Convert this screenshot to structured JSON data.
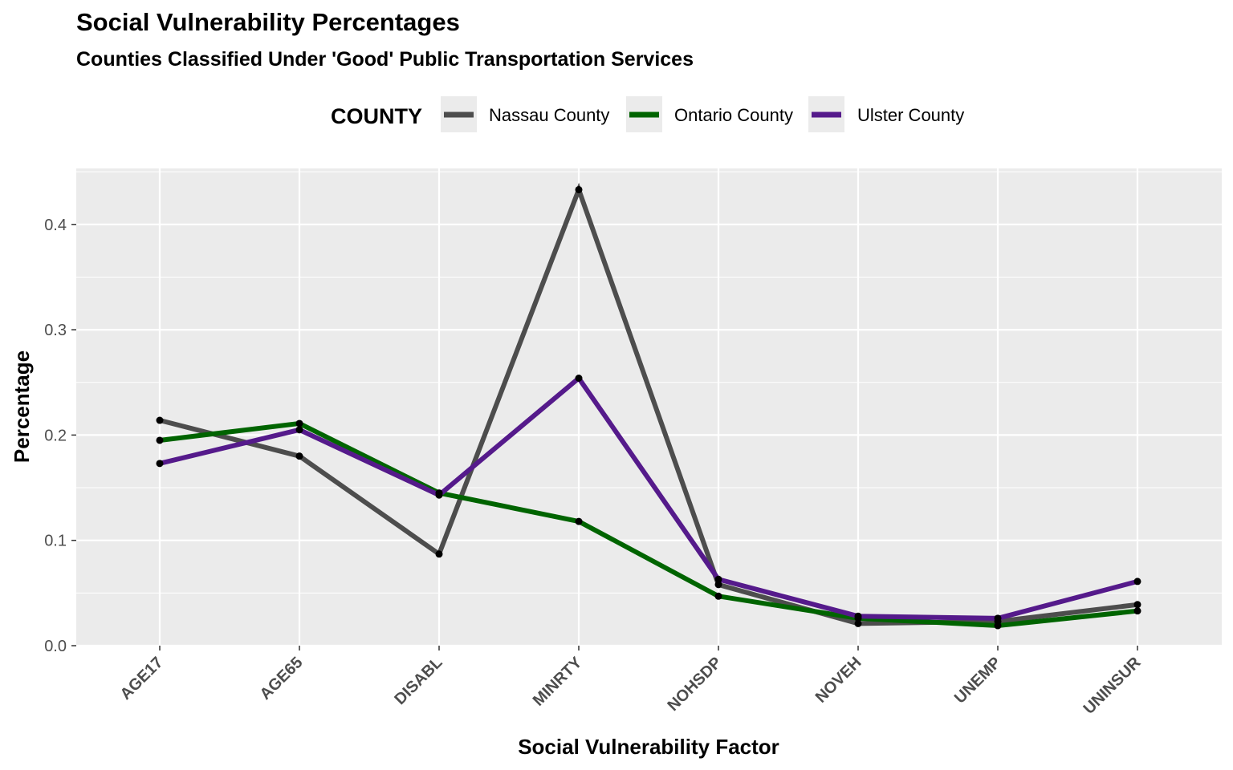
{
  "chart_data": {
    "type": "line",
    "title": "Social Vulnerability Percentages",
    "subtitle": "Counties Classified Under 'Good' Public Transportation Services",
    "xlabel": "Social Vulnerability Factor",
    "ylabel": "Percentage",
    "legend_title": "COUNTY",
    "legend_position": "top",
    "grid": true,
    "ylim": [
      0,
      0.45
    ],
    "yticks": [
      "0.0",
      "0.1",
      "0.2",
      "0.3",
      "0.4"
    ],
    "categories": [
      "AGE17",
      "AGE65",
      "DISABL",
      "MINRTY",
      "NOHSDP",
      "NOVEH",
      "UNEMP",
      "UNINSUR"
    ],
    "series": [
      {
        "name": "Nassau County",
        "color": "#4d4d4d",
        "values": [
          0.214,
          0.18,
          0.087,
          0.433,
          0.058,
          0.021,
          0.023,
          0.039
        ]
      },
      {
        "name": "Ontario County",
        "color": "#006400",
        "values": [
          0.195,
          0.211,
          0.145,
          0.118,
          0.047,
          0.026,
          0.019,
          0.033
        ]
      },
      {
        "name": "Ulster County",
        "color": "#551a8b",
        "values": [
          0.173,
          0.205,
          0.143,
          0.254,
          0.063,
          0.028,
          0.026,
          0.061
        ]
      }
    ]
  }
}
